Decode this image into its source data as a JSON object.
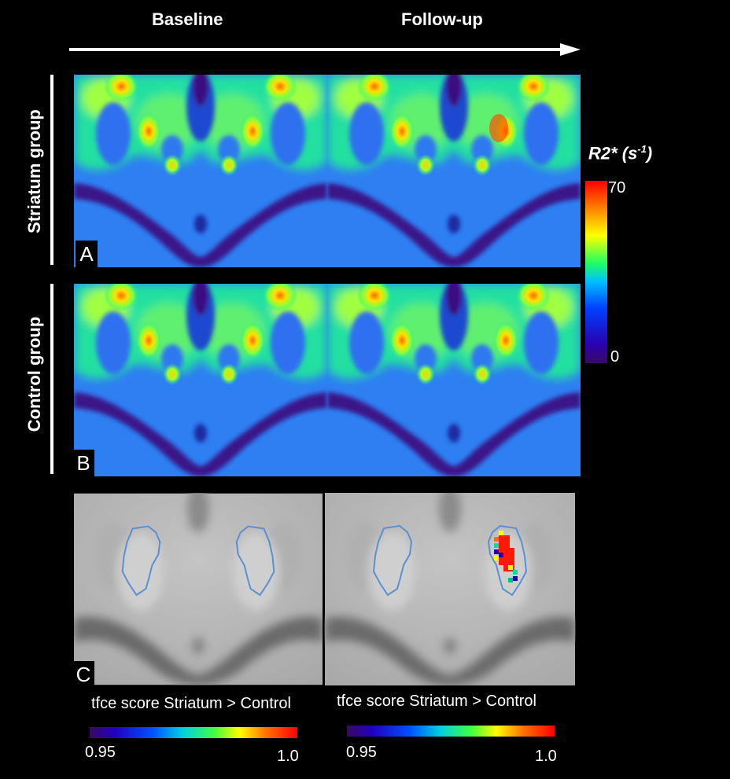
{
  "columns": {
    "baseline": "Baseline",
    "followup": "Follow-up"
  },
  "rows": {
    "striatum": "Striatum group",
    "control": "Control group"
  },
  "panels": {
    "a": "A",
    "b": "B",
    "c": "C"
  },
  "r2_colorbar": {
    "title_main": "R2* (s",
    "title_sup": "-1",
    "title_end": ")",
    "max": "70",
    "min": "0"
  },
  "tfce": {
    "left": {
      "title": "tfce score Striatum > Control",
      "min": "0.95",
      "max": "1.0"
    },
    "right": {
      "title": "tfce score Striatum > Control",
      "min": "0.95",
      "max": "1.0"
    }
  },
  "colors": {
    "background": "#000000",
    "map_base": "#2f7ff0",
    "outline": "#5b8fd0",
    "highlight": "#ff1a00"
  }
}
